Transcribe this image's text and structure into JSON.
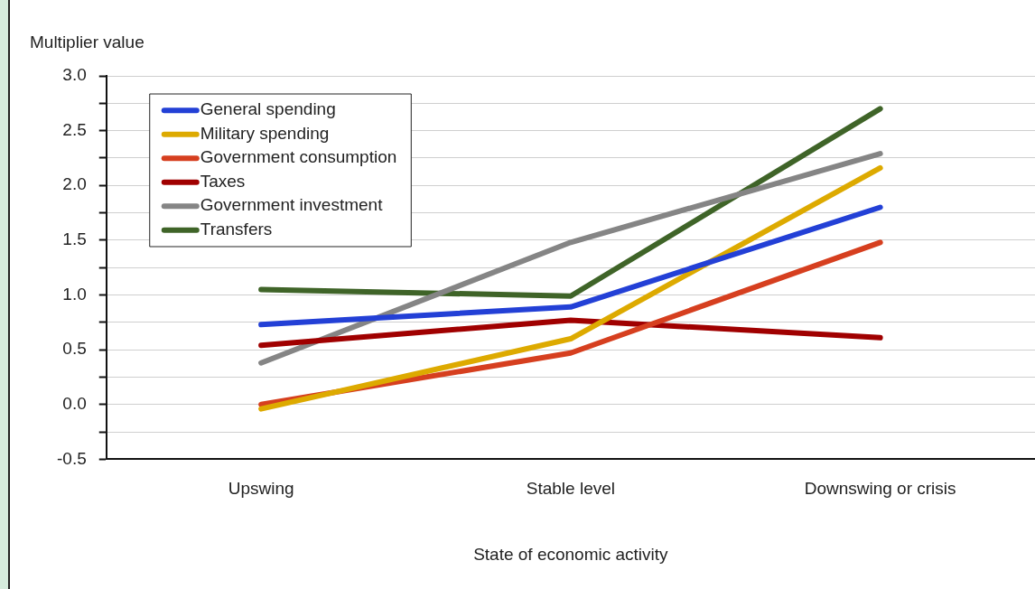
{
  "chart_data": {
    "type": "line",
    "ylabel": "Multiplier value",
    "xlabel": "State of economic activity",
    "categories": [
      "Upswing",
      "Stable level",
      "Downswing or crisis"
    ],
    "series": [
      {
        "name": "General spending",
        "color": "#2340d6",
        "values": [
          0.73,
          0.89,
          1.8
        ]
      },
      {
        "name": "Military spending",
        "color": "#ddaa00",
        "values": [
          -0.04,
          0.6,
          2.16
        ]
      },
      {
        "name": "Government consumption",
        "color": "#d63f1f",
        "values": [
          0.0,
          0.47,
          1.48
        ]
      },
      {
        "name": "Taxes",
        "color": "#a00000",
        "values": [
          0.54,
          0.77,
          0.61
        ]
      },
      {
        "name": "Government investment",
        "color": "#858585",
        "values": [
          0.38,
          1.48,
          2.29
        ]
      },
      {
        "name": "Transfers",
        "color": "#3f6428",
        "values": [
          1.05,
          0.99,
          2.7
        ]
      }
    ],
    "ylim": [
      -0.5,
      3.0
    ],
    "yticks": [
      {
        "value": -0.5,
        "label": "-0.5"
      },
      {
        "value": -0.25,
        "label": null
      },
      {
        "value": 0,
        "label": "0.0"
      },
      {
        "value": 0.25,
        "label": null
      },
      {
        "value": 0.5,
        "label": "0.5"
      },
      {
        "value": 0.75,
        "label": null
      },
      {
        "value": 1,
        "label": "1.0"
      },
      {
        "value": 1.25,
        "label": null
      },
      {
        "value": 1.5,
        "label": "1.5"
      },
      {
        "value": 1.75,
        "label": null
      },
      {
        "value": 2,
        "label": "2.0"
      },
      {
        "value": 2.25,
        "label": null
      },
      {
        "value": 2.5,
        "label": "2.5"
      },
      {
        "value": 2.75,
        "label": null
      },
      {
        "value": 3,
        "label": "3.0"
      }
    ],
    "grid": "y",
    "legend": "top left",
    "marker": "none",
    "line_style": "solid"
  }
}
